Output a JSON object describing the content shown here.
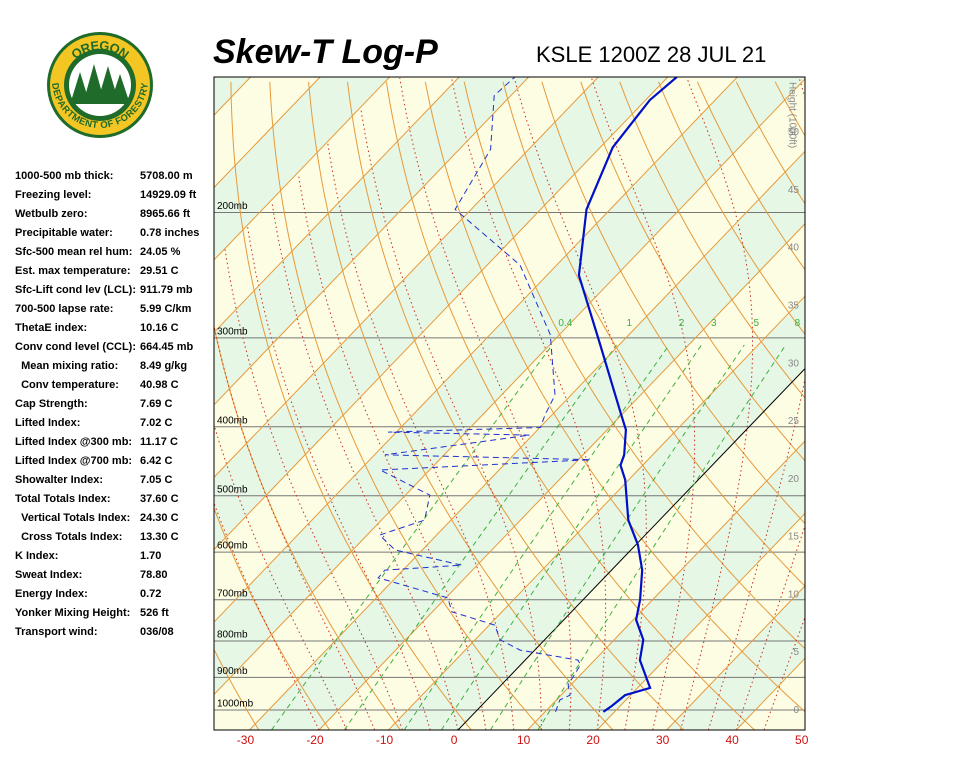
{
  "header": {
    "logo_top": "OREGON",
    "logo_bottom": "DEPARTMENT OF FORESTRY"
  },
  "indices": [
    {
      "label": "1000-500 mb thick:",
      "value": "5708.00 m"
    },
    {
      "label": "Freezing level:",
      "value": "14929.09 ft"
    },
    {
      "label": "Wetbulb zero:",
      "value": "8965.66 ft"
    },
    {
      "label": "Precipitable water:",
      "value": "0.78 inches"
    },
    {
      "label": "Sfc-500 mean rel hum:",
      "value": "24.05 %"
    },
    {
      "label": "Est. max temperature:",
      "value": "29.51 C"
    },
    {
      "label": "Sfc-Lift cond lev (LCL):",
      "value": "911.79 mb"
    },
    {
      "label": "700-500 lapse rate:",
      "value": "5.99 C/km"
    },
    {
      "label": "ThetaE index:",
      "value": "10.16 C"
    },
    {
      "label": "Conv cond level (CCL):",
      "value": "664.45 mb"
    },
    {
      "label": "  Mean mixing ratio:",
      "value": "8.49 g/kg"
    },
    {
      "label": "  Conv temperature:",
      "value": "40.98 C"
    },
    {
      "label": "Cap Strength:",
      "value": "7.69 C"
    },
    {
      "label": "Lifted Index:",
      "value": "7.02 C"
    },
    {
      "label": "Lifted Index @300 mb:",
      "value": "11.17 C"
    },
    {
      "label": "Lifted Index @700 mb:",
      "value": "6.42 C"
    },
    {
      "label": "Showalter Index:",
      "value": "7.05 C"
    },
    {
      "label": "Total Totals Index:",
      "value": "37.60 C"
    },
    {
      "label": "  Vertical Totals Index:",
      "value": "24.30 C"
    },
    {
      "label": "  Cross Totals Index:",
      "value": "13.30 C"
    },
    {
      "label": "K Index:",
      "value": "1.70"
    },
    {
      "label": "Sweat Index:",
      "value": "78.80"
    },
    {
      "label": "Energy Index:",
      "value": "0.72"
    },
    {
      "label": "Yonker Mixing Height:",
      "value": "526 ft"
    },
    {
      "label": "Transport wind:",
      "value": "036/08"
    }
  ],
  "chart_data": {
    "type": "skewt",
    "title": "Skew-T Log-P",
    "subtitle": "KSLE 1200Z 28 JUL 21",
    "xlim": [
      -35.1,
      49.9
    ],
    "xticks": [
      -30,
      -20,
      -10,
      0,
      10,
      20,
      30,
      40,
      50
    ],
    "ylim": [
      1067,
      129
    ],
    "log_y": true,
    "yticks": [
      {
        "value": 1000,
        "label": "1000mb"
      },
      {
        "value": 900,
        "label": "900mb"
      },
      {
        "value": 800,
        "label": "800mb"
      },
      {
        "value": 700,
        "label": "700mb"
      },
      {
        "value": 600,
        "label": "600mb"
      },
      {
        "value": 500,
        "label": "500mb"
      },
      {
        "value": 400,
        "label": "400mb"
      },
      {
        "value": 300,
        "label": "300mb"
      },
      {
        "value": 200,
        "label": "200mb"
      }
    ],
    "y2label": "Height (1000ft)",
    "y2lim": [
      -1.7,
      54.8
    ],
    "y2ticks": [
      0,
      5,
      10,
      15,
      20,
      25,
      30,
      35,
      40,
      45,
      50
    ],
    "mixing_ratios": [
      {
        "value": 0.4,
        "label": "0.4"
      },
      1,
      2,
      3,
      5,
      8
    ],
    "series": [
      {
        "color": "#0010c8",
        "style": "solid",
        "pressure": [
          1006,
          987,
          953,
          931,
          851,
          797,
          747,
          700,
          636,
          586,
          541,
          475,
          453,
          438,
          404,
          379,
          307,
          245,
          198,
          162,
          139,
          129
        ],
        "values": [
          18.4,
          18.8,
          19.2,
          21.8,
          16.5,
          14.2,
          10.4,
          8.2,
          4.4,
          0.3,
          -4.5,
          -10.5,
          -13.2,
          -14.1,
          -17.3,
          -20.9,
          -32.7,
          -45.4,
          -53.4,
          -58.2,
          -59.4,
          -58.7
        ]
      },
      {
        "color": "#2030d0",
        "style": "dashed",
        "pressure": [
          1006,
          968,
          953,
          922,
          864,
          851,
          837,
          824,
          797,
          760,
          728,
          696,
          652,
          636,
          626,
          596,
          568,
          541,
          499,
          460,
          445,
          438,
          411,
          407,
          401,
          385,
          361,
          297,
          237,
          198,
          163,
          137,
          129
        ],
        "values": [
          11.5,
          10.5,
          11.3,
          9.6,
          8.6,
          7.6,
          2.6,
          -2.1,
          -6.4,
          -9.2,
          -17.2,
          -19.7,
          -32.5,
          -32.6,
          -22.2,
          -33.9,
          -38.2,
          -33.8,
          -36.5,
          -47.1,
          -18.3,
          -48.5,
          -30.4,
          -51.2,
          -29.9,
          -31.0,
          -32.3,
          -41.3,
          -55.3,
          -72.3,
          -75.5,
          -82.4,
          -82.0
        ]
      }
    ]
  }
}
